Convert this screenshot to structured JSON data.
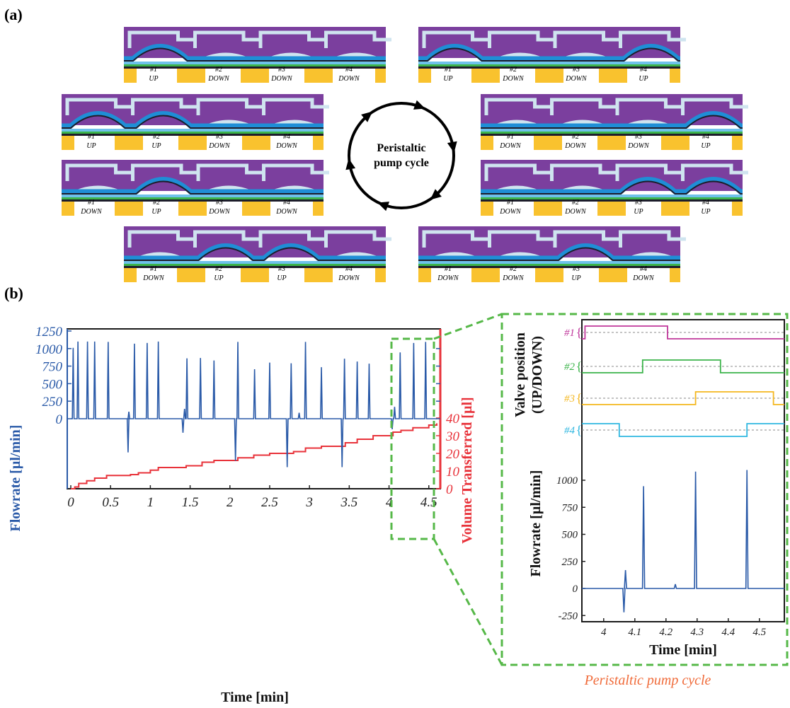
{
  "panel_a": {
    "label": "(a)",
    "cycle_label_line1": "Peristaltic",
    "cycle_label_line2": "pump cycle",
    "states": [
      {
        "valves": [
          "#1",
          "#2",
          "#3",
          "#4"
        ],
        "positions": [
          "UP",
          "DOWN",
          "DOWN",
          "DOWN"
        ]
      },
      {
        "valves": [
          "#1",
          "#2",
          "#3",
          "#4"
        ],
        "positions": [
          "UP",
          "DOWN",
          "DOWN",
          "UP"
        ]
      },
      {
        "valves": [
          "#1",
          "#2",
          "#3",
          "#4"
        ],
        "positions": [
          "UP",
          "UP",
          "DOWN",
          "DOWN"
        ]
      },
      {
        "valves": [
          "#1",
          "#2",
          "#3",
          "#4"
        ],
        "positions": [
          "DOWN",
          "DOWN",
          "DOWN",
          "UP"
        ]
      },
      {
        "valves": [
          "#1",
          "#2",
          "#3",
          "#4"
        ],
        "positions": [
          "DOWN",
          "UP",
          "DOWN",
          "DOWN"
        ]
      },
      {
        "valves": [
          "#1",
          "#2",
          "#3",
          "#4"
        ],
        "positions": [
          "DOWN",
          "DOWN",
          "UP",
          "UP"
        ]
      },
      {
        "valves": [
          "#1",
          "#2",
          "#3",
          "#4"
        ],
        "positions": [
          "DOWN",
          "UP",
          "UP",
          "DOWN"
        ]
      },
      {
        "valves": [
          "#1",
          "#2",
          "#3",
          "#4"
        ],
        "positions": [
          "DOWN",
          "DOWN",
          "UP",
          "DOWN"
        ]
      }
    ],
    "colors": {
      "top": "#7b3f9e",
      "channel": "#cfe4ef",
      "membrane": "#1f8ed6",
      "membrane_light": "#6ec1ea",
      "base": "#f9c22e",
      "green": "#3cb44b",
      "dark": "#1d1d2b"
    }
  },
  "panel_b": {
    "label": "(b)",
    "main_chart": {
      "xlabel": "Time [min]",
      "ylabel_left": "Flowrate [µl/min]",
      "ylabel_right": "Volume Transferred [µl]",
      "x_ticks": [
        "0",
        "0.5",
        "1",
        "1.5",
        "2",
        "2.5",
        "3",
        "3.5",
        "4",
        "4.5"
      ],
      "y_ticks_left": [
        "1250",
        "1000",
        "750",
        "500",
        "250",
        "0"
      ],
      "y_ticks_right": [
        "40",
        "30",
        "20",
        "10",
        "0"
      ],
      "colors": {
        "flow": "#2a5aa8",
        "volume": "#e8323a",
        "zoom": "#56b848"
      }
    },
    "inset": {
      "valve_axis_title_line1": "Valve position",
      "valve_axis_title_line2": "(UP/DOWN)",
      "valve_labels": [
        "#1",
        "#2",
        "#3",
        "#4"
      ],
      "valve_colors": [
        "#c0379b",
        "#3cb44b",
        "#f4b71f",
        "#2fb7e0"
      ],
      "ylabel": "Flowrate [µl/min]",
      "xlabel": "Time [min]",
      "x_ticks": [
        "4",
        "4.1",
        "4.2",
        "4.3",
        "4.4",
        "4.5"
      ],
      "y_ticks": [
        "1000",
        "750",
        "500",
        "250",
        "0",
        "-250"
      ],
      "caption": "Peristaltic pump cycle"
    }
  },
  "chart_data": [
    {
      "type": "line",
      "title": "",
      "xlabel": "Time [min]",
      "ylabel": "Flowrate [µl/min]",
      "xlim": [
        0,
        4.6
      ],
      "ylim": [
        -1500,
        1250
      ],
      "series": [
        {
          "name": "Flowrate [µl/min]",
          "x": [
            0.03,
            0.09,
            0.21,
            0.3,
            0.47,
            0.72,
            0.73,
            0.8,
            0.96,
            1.1,
            1.41,
            1.43,
            1.46,
            1.63,
            1.8,
            2.07,
            2.1,
            2.31,
            2.5,
            2.77,
            2.72,
            2.87,
            2.95,
            3.15,
            3.41,
            3.44,
            3.6,
            3.75,
            4.04,
            4.07,
            4.14,
            4.31,
            4.46
          ],
          "values": [
            1010,
            1100,
            1100,
            1100,
            1095,
            -480,
            100,
            1070,
            1080,
            1100,
            -200,
            140,
            860,
            865,
            830,
            -600,
            1095,
            705,
            800,
            790,
            -690,
            85,
            1095,
            735,
            -690,
            855,
            815,
            785,
            -150,
            170,
            945,
            1080,
            1095
          ]
        }
      ]
    },
    {
      "type": "line",
      "xlabel": "Time [min]",
      "ylabel": "Volume Transferred [µl]",
      "xlim": [
        0,
        4.6
      ],
      "ylim": [
        0,
        45
      ],
      "series": [
        {
          "name": "Volume Transferred [µl]",
          "x": [
            0.0,
            0.05,
            0.1,
            0.2,
            0.3,
            0.45,
            0.75,
            0.85,
            1.0,
            1.1,
            1.45,
            1.65,
            1.8,
            2.1,
            2.3,
            2.5,
            2.8,
            2.95,
            3.15,
            3.45,
            3.6,
            3.8,
            4.05,
            4.15,
            4.3,
            4.5,
            4.6
          ],
          "values": [
            0,
            1,
            3,
            4.5,
            6,
            7.5,
            8,
            9,
            10.5,
            12,
            13,
            15,
            16,
            17.5,
            19,
            20,
            21,
            23,
            24,
            26,
            28,
            30,
            32,
            33,
            34.5,
            36,
            37
          ]
        }
      ]
    },
    {
      "type": "line",
      "xlabel": "Time [min]",
      "ylabel": "Flowrate [µl/min]",
      "xlim": [
        3.93,
        4.58
      ],
      "ylim": [
        -250,
        1100
      ],
      "series": [
        {
          "name": "Flowrate [µl/min]",
          "x": [
            4.065,
            4.07,
            4.128,
            4.23,
            4.295,
            4.46
          ],
          "values": [
            -220,
            170,
            945,
            40,
            1080,
            1095
          ]
        }
      ]
    }
  ]
}
